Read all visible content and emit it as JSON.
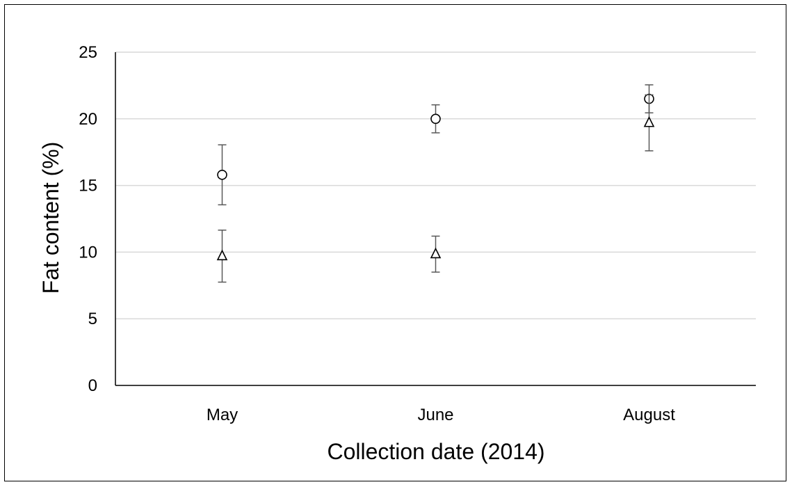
{
  "chart_data": {
    "type": "scatter",
    "title": "",
    "xlabel": "Collection date (2014)",
    "ylabel": "Fat content (%)",
    "categories": [
      "May",
      "June",
      "August"
    ],
    "ylim": [
      0,
      25
    ],
    "yticks": [
      0,
      5,
      10,
      15,
      20,
      25
    ],
    "grid": true,
    "legend": "none",
    "series": [
      {
        "marker": "circle",
        "values": [
          15.8,
          20.0,
          21.5
        ],
        "error": [
          2.25,
          1.05,
          1.05
        ]
      },
      {
        "marker": "triangle",
        "values": [
          9.7,
          9.85,
          19.7
        ],
        "error": [
          1.95,
          1.35,
          2.1
        ]
      }
    ]
  }
}
